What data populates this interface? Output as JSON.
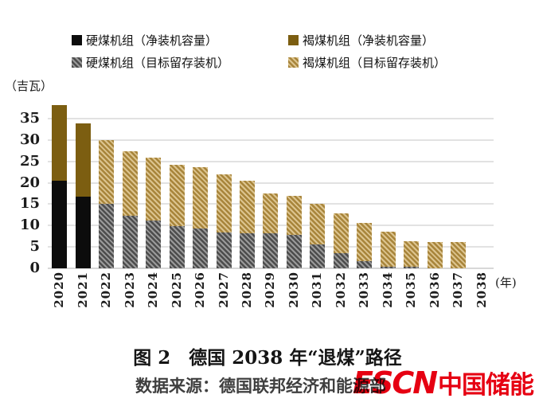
{
  "figure": {
    "unit_label": "（吉瓦）",
    "axis_year_suffix": "(年)",
    "title": "图 2　德国 2038 年“退煤”路径",
    "source_text": "数据来源：德国联邦经济和能源部"
  },
  "logo": {
    "text_en": "ESCN",
    "text_zh": "中国储能网",
    "color": "#e60012"
  },
  "colors": {
    "hard_net": "#0c0c0c",
    "lignite_net": "#7c5e11",
    "hard_target_dark": "#4d4d4d",
    "hard_target_light": "#9a9a9a",
    "lignite_target_dark": "#a8853b",
    "lignite_target_light": "#dcc48f",
    "gridline": "#e2e2e2",
    "baseline": "#d8d8d8"
  },
  "chart_data": {
    "type": "bar",
    "stacked": true,
    "title": "德国 2038 年“退煤”路径",
    "ylabel": "（吉瓦）",
    "xlabel": "(年)",
    "ylim": [
      0,
      40
    ],
    "yticks": [
      0,
      5,
      10,
      15,
      20,
      25,
      30,
      35
    ],
    "grid": true,
    "legend_position": "top",
    "categories": [
      "2020",
      "2021",
      "2022",
      "2023",
      "2024",
      "2025",
      "2026",
      "2027",
      "2028",
      "2029",
      "2030",
      "2031",
      "2032",
      "2033",
      "2034",
      "2035",
      "2036",
      "2037",
      "2038"
    ],
    "series": [
      {
        "name": "硬煤机组（净装机容量）",
        "style": "hard_net",
        "values": [
          20.5,
          16.7,
          0,
          0,
          0,
          0,
          0,
          0,
          0,
          0,
          0,
          0,
          0,
          0,
          0,
          0,
          0,
          0,
          0
        ]
      },
      {
        "name": "褐煤机组（净装机容量）",
        "style": "lignite_net",
        "values": [
          17.7,
          17.1,
          0,
          0,
          0,
          0,
          0,
          0,
          0,
          0,
          0,
          0,
          0,
          0,
          0,
          0,
          0,
          0,
          0
        ]
      },
      {
        "name": "硬煤机组（目标留存装机）",
        "style": "hard_target",
        "values": [
          0,
          0,
          15.0,
          12.2,
          11.2,
          9.8,
          9.3,
          8.4,
          8.1,
          8.2,
          7.9,
          5.6,
          3.6,
          1.6,
          0.4,
          0.3,
          0,
          0,
          0
        ]
      },
      {
        "name": "褐煤机组（目标留存装机）",
        "style": "lignite_target",
        "values": [
          0,
          0,
          15.0,
          15.2,
          14.6,
          14.4,
          14.4,
          13.6,
          12.3,
          9.3,
          9.1,
          9.4,
          9.2,
          9.1,
          8.1,
          6.1,
          6.1,
          6.1,
          0
        ]
      }
    ]
  }
}
